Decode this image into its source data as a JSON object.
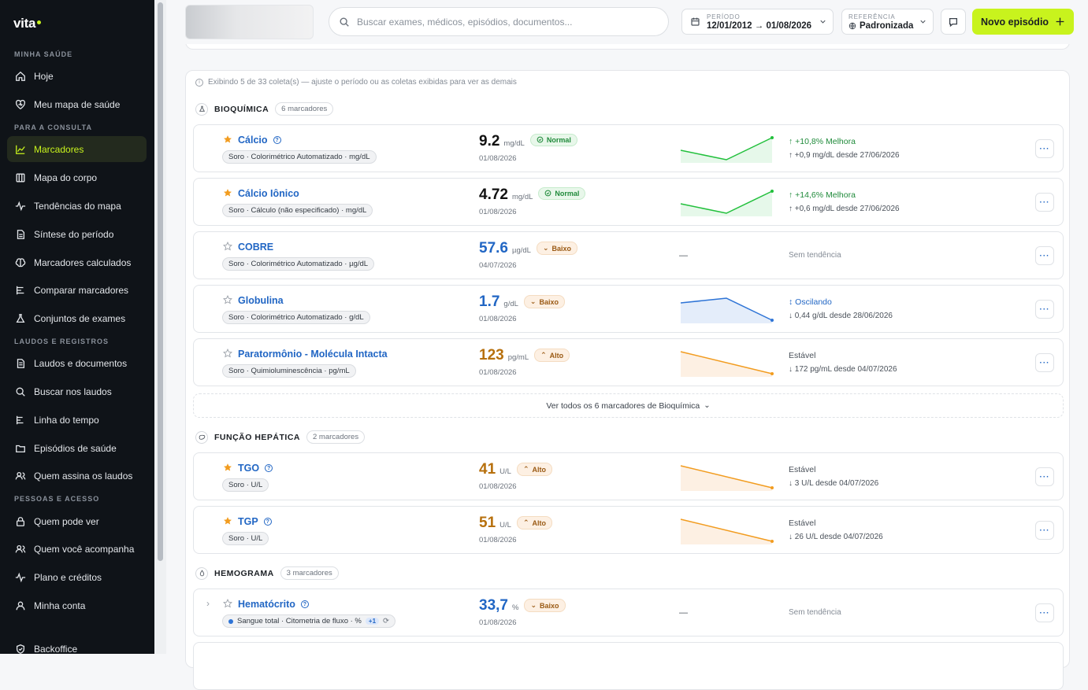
{
  "brand": {
    "name": "vita"
  },
  "sidebar": {
    "sections": [
      {
        "label": "MINHA SAÚDE"
      },
      {
        "label": "PARA A CONSULTA"
      },
      {
        "label": "LAUDOS E REGISTROS"
      },
      {
        "label": "PESSOAS E ACESSO"
      }
    ],
    "items": [
      {
        "label": "Hoje",
        "icon": "home-icon"
      },
      {
        "label": "Meu mapa de saúde",
        "icon": "heart-icon"
      },
      {
        "label": "Marcadores",
        "icon": "trend-icon"
      },
      {
        "label": "Mapa do corpo",
        "icon": "map-icon"
      },
      {
        "label": "Tendências do mapa",
        "icon": "pulse-icon"
      },
      {
        "label": "Síntese do período",
        "icon": "file-icon"
      },
      {
        "label": "Marcadores calculados",
        "icon": "brain-icon"
      },
      {
        "label": "Comparar marcadores",
        "icon": "compare-icon"
      },
      {
        "label": "Conjuntos de exames",
        "icon": "flask-icon"
      },
      {
        "label": "Laudos e documentos",
        "icon": "document-icon"
      },
      {
        "label": "Buscar nos laudos",
        "icon": "search-icon"
      },
      {
        "label": "Linha do tempo",
        "icon": "timeline-icon"
      },
      {
        "label": "Episódios de saúde",
        "icon": "folder-icon"
      },
      {
        "label": "Quem assina os laudos",
        "icon": "users-icon"
      },
      {
        "label": "Quem pode ver",
        "icon": "lock-icon"
      },
      {
        "label": "Quem você acompanha",
        "icon": "users-icon"
      },
      {
        "label": "Plano e créditos",
        "icon": "pulse-icon"
      },
      {
        "label": "Minha conta",
        "icon": "user-icon"
      },
      {
        "label": "Backoffice",
        "icon": "shield-icon"
      }
    ],
    "accent": "#c8f31d"
  },
  "topbar": {
    "search_placeholder": "Buscar exames, médicos, episódios, documentos...",
    "period_label": "PERÍODO",
    "period_value": "12/01/2012 → 01/08/2026",
    "reference_label": "REFERÊNCIA",
    "reference_value": "Padronizada",
    "new_button": "Novo episódio"
  },
  "panel": {
    "info": "Exibindo 5 de 33 coleta(s) — ajuste o período ou as coletas exibidas para ver as demais",
    "see_all": "Ver todos os 6 marcadores de Bioquímica"
  },
  "groups": [
    {
      "title": "BIOQUÍMICA",
      "count": "6 marcadores"
    },
    {
      "title": "FUNÇÃO HEPÁTICA",
      "count": "2 marcadores"
    },
    {
      "title": "HEMOGRAMA",
      "count": "3 marcadores"
    }
  ],
  "markers": [
    {
      "name": "Cálcio",
      "tag": "Soro · Colorimétrico Automatizado · mg/dL",
      "value": "9.2",
      "unit": "mg/dL",
      "status": "Normal",
      "date": "01/08/2026",
      "trend": "↑ +10,8% Melhora",
      "trend_detail": "↑ +0,9 mg/dL desde 27/06/2026",
      "starred": true
    },
    {
      "name": "Cálcio Iônico",
      "tag": "Soro · Cálculo (não especificado) · mg/dL",
      "value": "4.72",
      "unit": "mg/dL",
      "status": "Normal",
      "date": "01/08/2026",
      "trend": "↑ +14,6% Melhora",
      "trend_detail": "↑ +0,6 mg/dL desde 27/06/2026",
      "starred": true
    },
    {
      "name": "COBRE",
      "tag": "Soro · Colorimétrico Automatizado · µg/dL",
      "value": "57.6",
      "unit": "µg/dL",
      "status": "Baixo",
      "date": "04/07/2026",
      "spark_empty": "—",
      "trend": "Sem tendência",
      "trend_detail": "",
      "starred": false
    },
    {
      "name": "Globulina",
      "tag": "Soro · Colorimétrico Automatizado · g/dL",
      "value": "1.7",
      "unit": "g/dL",
      "status": "Baixo",
      "date": "01/08/2026",
      "trend": "↕ Oscilando",
      "trend_detail": "↓ 0,44 g/dL desde 28/06/2026",
      "starred": false
    },
    {
      "name": "Paratormônio - Molécula Intacta",
      "tag": "Soro · Quimioluminescência · pg/mL",
      "value": "123",
      "unit": "pg/mL",
      "status": "Alto",
      "date": "01/08/2026",
      "trend": "Estável",
      "trend_detail": "↓ 172 pg/mL desde 04/07/2026",
      "starred": false
    },
    {
      "name": "TGO",
      "tag": "Soro · U/L",
      "value": "41",
      "unit": "U/L",
      "status": "Alto",
      "date": "01/08/2026",
      "trend": "Estável",
      "trend_detail": "↓ 3 U/L desde 04/07/2026",
      "starred": true
    },
    {
      "name": "TGP",
      "tag": "Soro · U/L",
      "value": "51",
      "unit": "U/L",
      "status": "Alto",
      "date": "01/08/2026",
      "trend": "Estável",
      "trend_detail": "↓ 26 U/L desde 04/07/2026",
      "starred": true
    },
    {
      "name": "Hematócrito",
      "tag": "Sangue total · Citometria de fluxo · %",
      "tag_extra": "+1",
      "value": "33,7",
      "unit": "%",
      "status": "Baixo",
      "date": "01/08/2026",
      "spark_empty": "—",
      "trend": "Sem tendência",
      "trend_detail": "",
      "starred": false
    }
  ],
  "colors": {
    "normal": "#1f8a3a",
    "baixo": "#2166c4",
    "alto": "#b7700d",
    "green": "#22c03c",
    "blue": "#2e74d6",
    "orange": "#f29c1f"
  }
}
